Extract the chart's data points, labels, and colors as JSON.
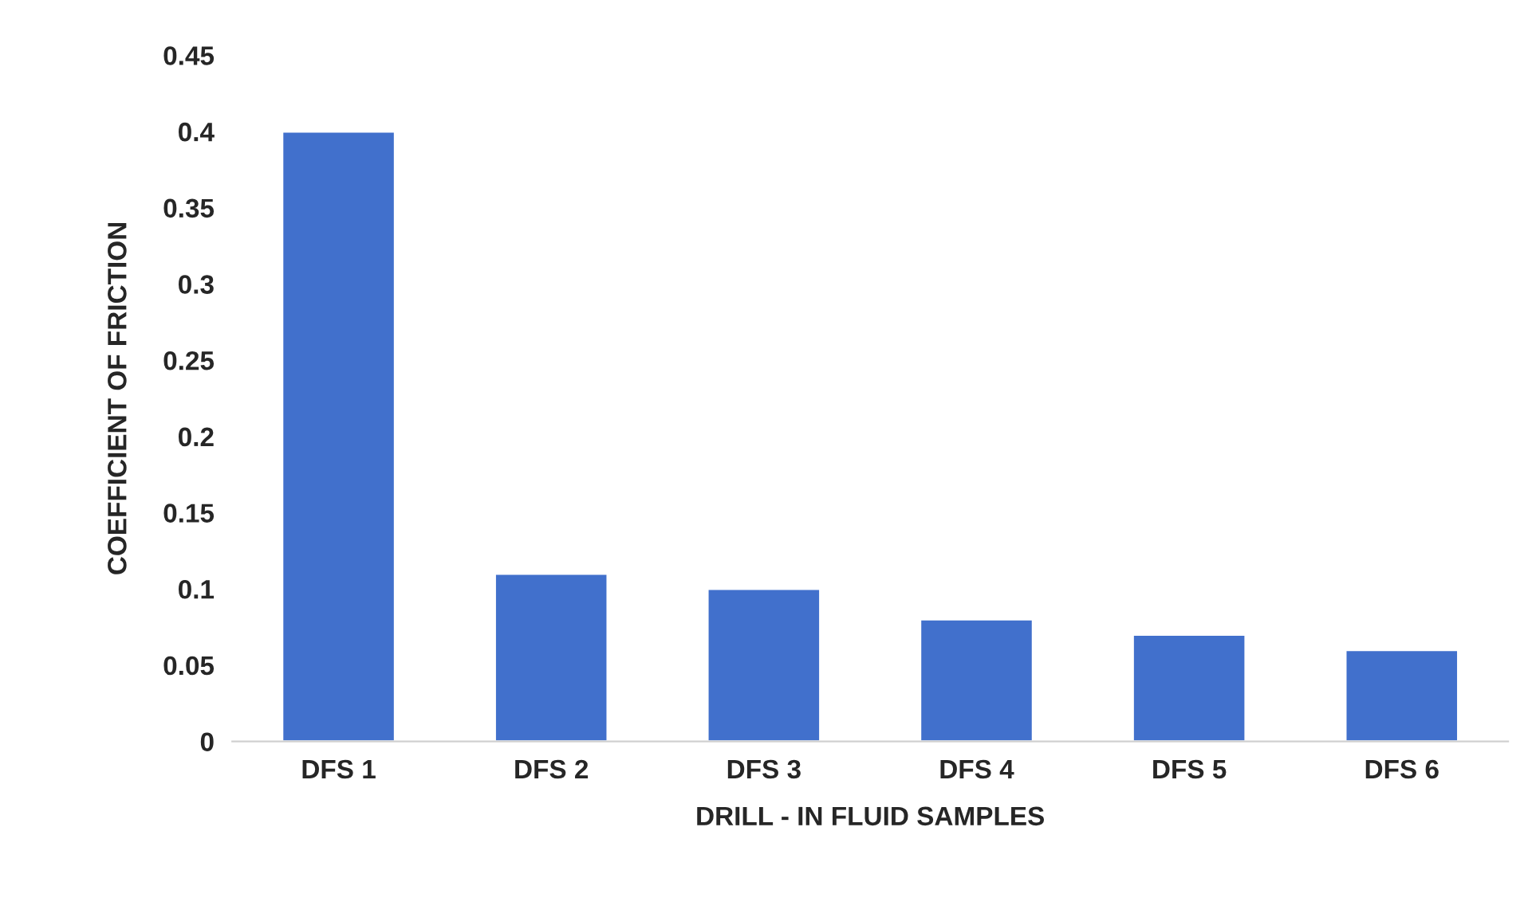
{
  "chart_data": {
    "type": "bar",
    "xlabel": "DRILL - IN FLUID SAMPLES",
    "ylabel": "COEFFICIENT OF FRICTION",
    "categories": [
      "DFS 1",
      "DFS 2",
      "DFS 3",
      "DFS 4",
      "DFS 5",
      "DFS 6"
    ],
    "values": [
      0.4,
      0.11,
      0.1,
      0.08,
      0.07,
      0.06
    ],
    "color": "#4170cc",
    "ylim": [
      0,
      0.45
    ],
    "yticks": [
      0,
      0.05,
      0.1,
      0.15,
      0.2,
      0.25,
      0.3,
      0.35,
      0.4,
      0.45
    ],
    "grid": false
  }
}
